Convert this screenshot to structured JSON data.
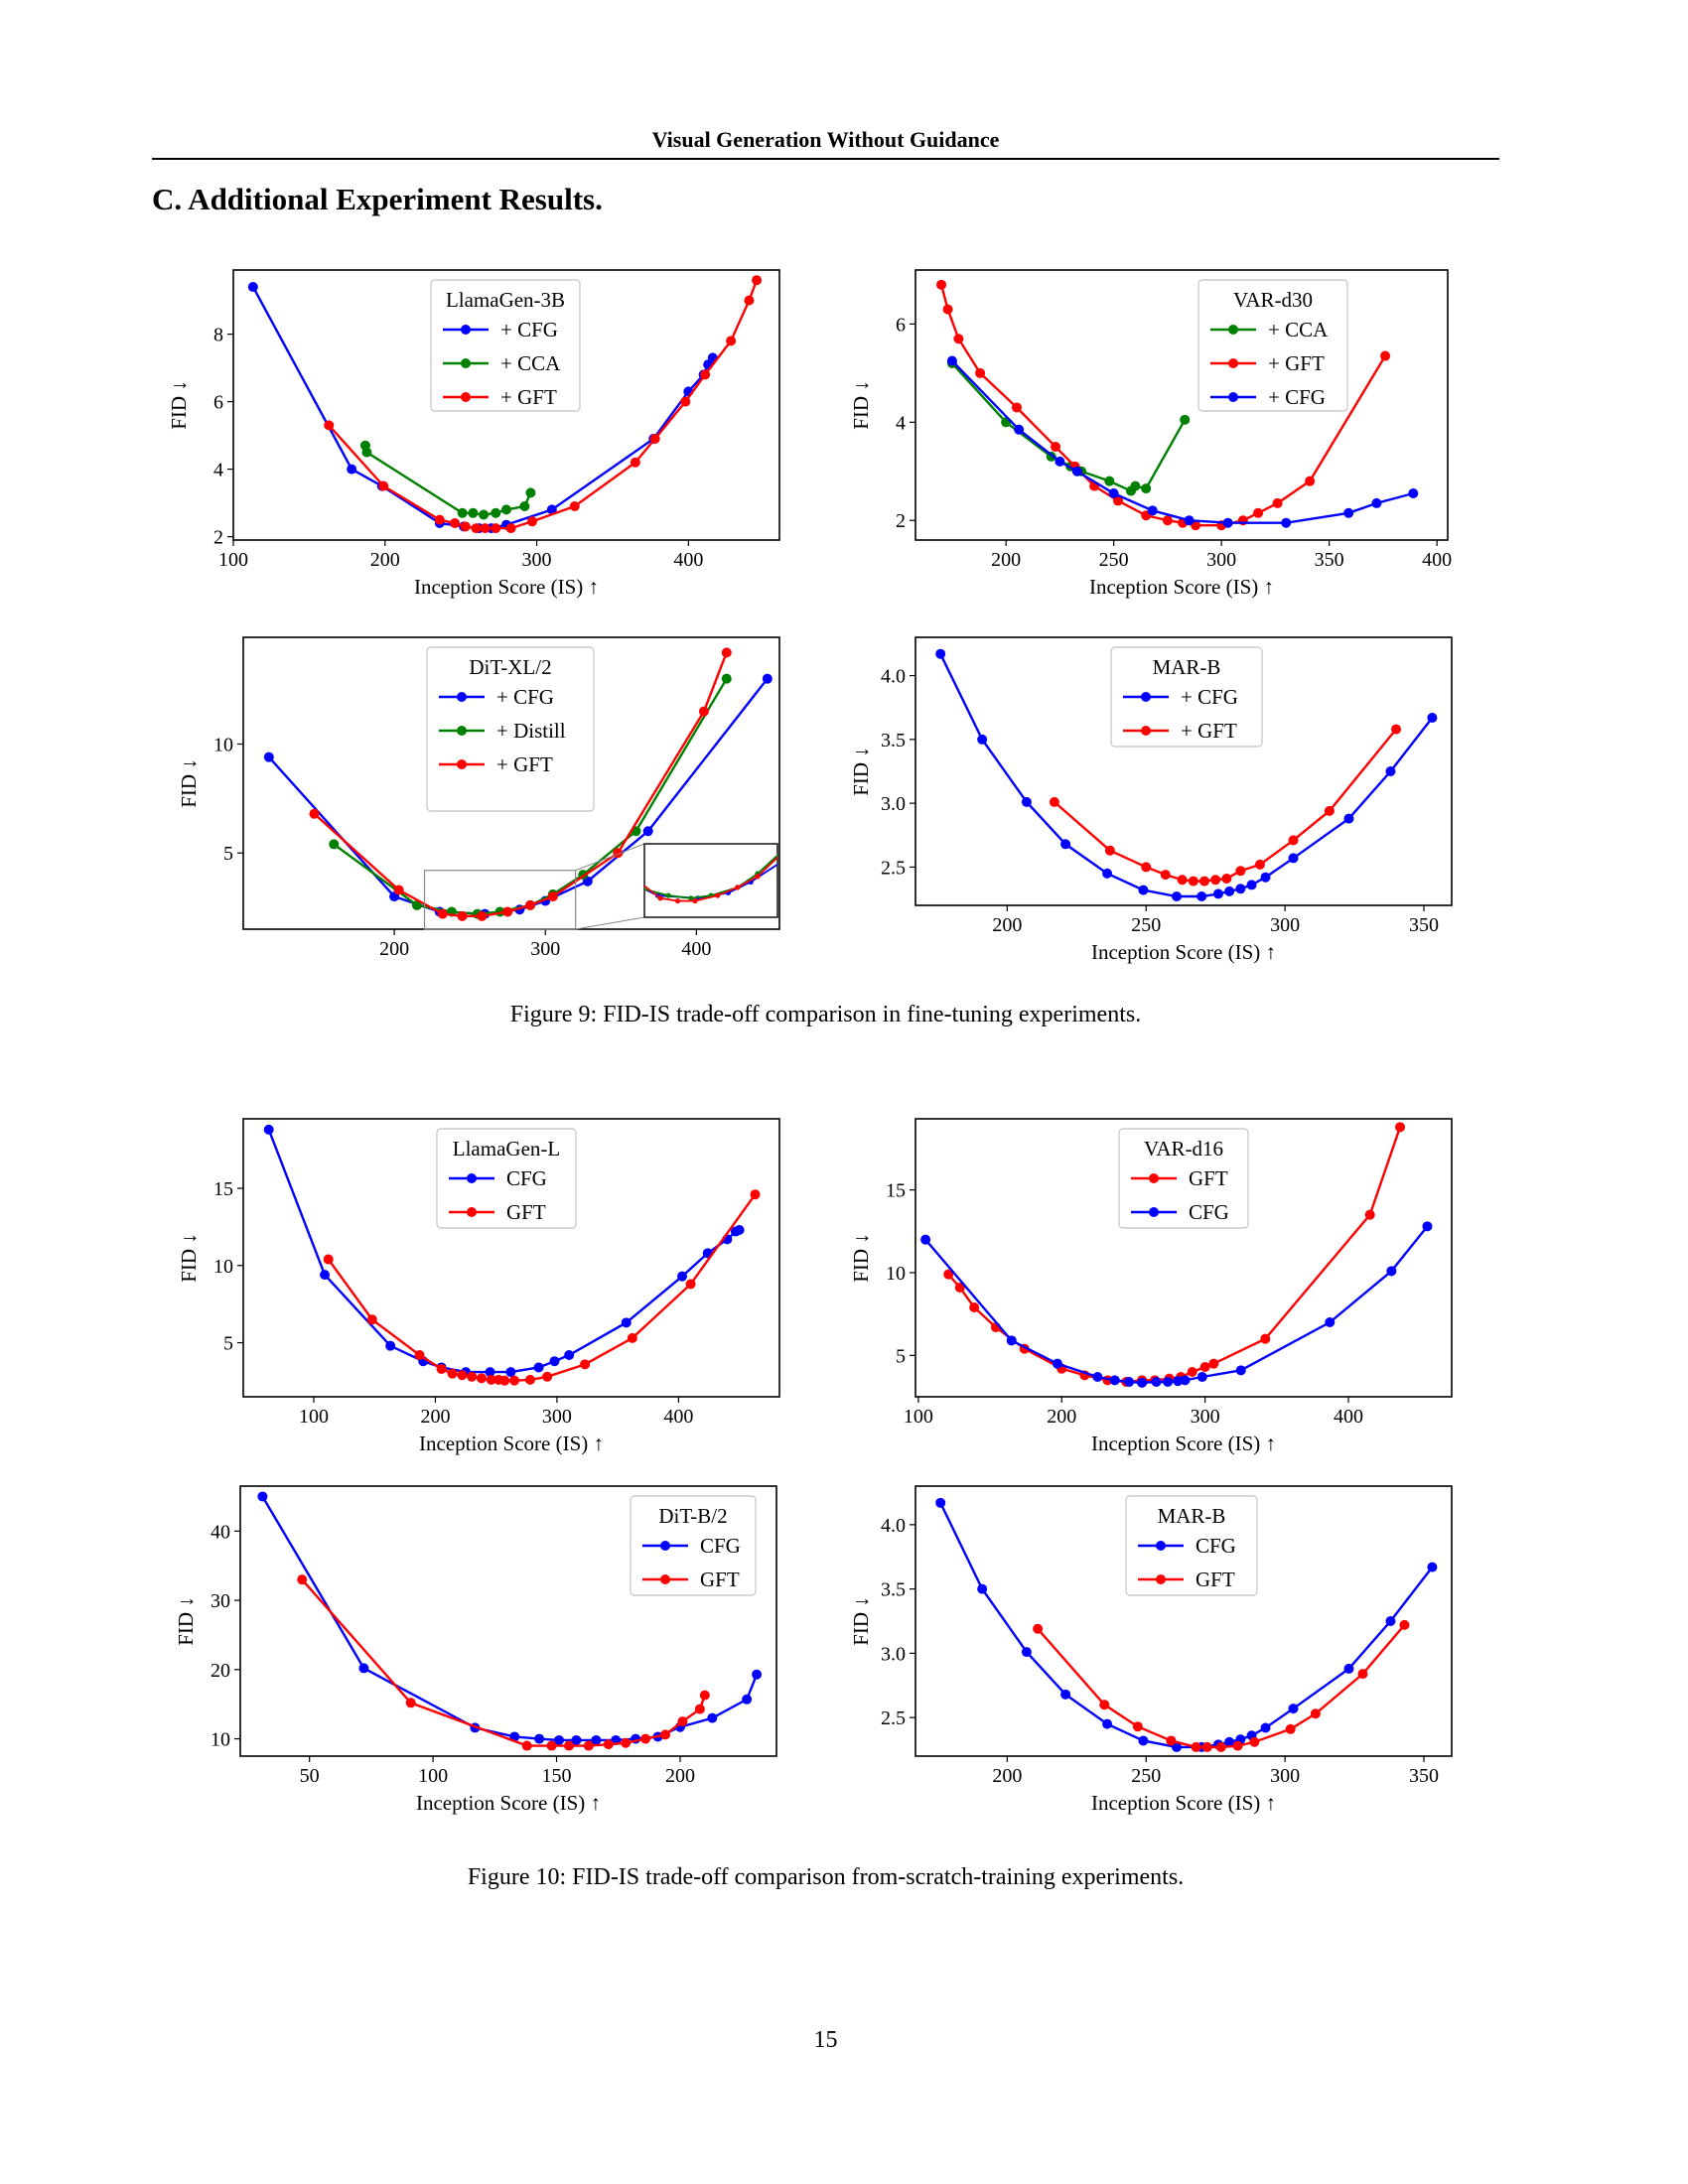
{
  "header": {
    "running_title": "Visual Generation Without Guidance"
  },
  "section": {
    "title": "C. Additional Experiment Results."
  },
  "figure9": {
    "caption": "Figure 9: FID-IS trade-off comparison in fine-tuning experiments."
  },
  "figure10": {
    "caption": "Figure 10: FID-IS trade-off comparison from-scratch-training experiments."
  },
  "page_number": "15",
  "colors": {
    "blue": "#0000ff",
    "green": "#008000",
    "red": "#ff0000"
  },
  "chart_data": [
    {
      "type": "line",
      "legend_title": "LlamaGen-3B",
      "xlabel": "Inception Score (IS) ↑",
      "ylabel": "FID ↓",
      "xlim": [
        100,
        460
      ],
      "ylim": [
        1.9,
        9.9
      ],
      "xticks": [
        100,
        200,
        300,
        400
      ],
      "yticks": [
        2,
        4,
        6,
        8
      ],
      "legend_position": "top-center",
      "series": [
        {
          "name": "+ CFG",
          "color": "#0000ff",
          "x": [
            113,
            178,
            198,
            236,
            252,
            262,
            270,
            280,
            310,
            377,
            400,
            410,
            413,
            416
          ],
          "y": [
            9.4,
            4.0,
            3.5,
            2.4,
            2.3,
            2.25,
            2.25,
            2.35,
            2.8,
            4.9,
            6.3,
            6.8,
            7.1,
            7.3
          ]
        },
        {
          "name": "+ CCA",
          "color": "#008000",
          "x": [
            187,
            188,
            251,
            258,
            265,
            273,
            280,
            292,
            296
          ],
          "y": [
            4.7,
            4.5,
            2.7,
            2.7,
            2.65,
            2.7,
            2.8,
            2.9,
            3.3
          ]
        },
        {
          "name": "+ GFT",
          "color": "#ff0000",
          "x": [
            163,
            199,
            236,
            246,
            253,
            260,
            266,
            273,
            283,
            297,
            325,
            365,
            378,
            398,
            411,
            428,
            440,
            445
          ],
          "y": [
            5.3,
            3.5,
            2.5,
            2.4,
            2.3,
            2.25,
            2.25,
            2.25,
            2.25,
            2.45,
            2.9,
            4.2,
            4.9,
            6.0,
            6.8,
            7.8,
            9.0,
            9.6
          ]
        }
      ]
    },
    {
      "type": "line",
      "legend_title": "VAR-d30",
      "xlabel": "Inception Score (IS) ↑",
      "ylabel": "FID ↓",
      "xlim": [
        158,
        405
      ],
      "ylim": [
        1.6,
        7.1
      ],
      "xticks": [
        200,
        250,
        300,
        350,
        400
      ],
      "yticks": [
        2,
        4,
        6
      ],
      "legend_position": "top-right",
      "series": [
        {
          "name": "+ CCA",
          "color": "#008000",
          "x": [
            175,
            200,
            221,
            230,
            235,
            248,
            258,
            260,
            265,
            283
          ],
          "y": [
            5.2,
            4.0,
            3.3,
            3.1,
            3.0,
            2.8,
            2.6,
            2.7,
            2.65,
            4.05
          ]
        },
        {
          "name": "+ GFT",
          "color": "#ff0000",
          "x": [
            170,
            173,
            178,
            188,
            205,
            223,
            232,
            241,
            252,
            265,
            275,
            282,
            288,
            300,
            310,
            317,
            326,
            341,
            376
          ],
          "y": [
            6.8,
            6.3,
            5.7,
            5.0,
            4.3,
            3.5,
            3.1,
            2.7,
            2.4,
            2.1,
            2.0,
            1.95,
            1.9,
            1.9,
            2.0,
            2.15,
            2.35,
            2.8,
            5.35
          ]
        },
        {
          "name": "+ CFG",
          "color": "#0000ff",
          "x": [
            175,
            206,
            225,
            233,
            250,
            268,
            285,
            303,
            330,
            359,
            372,
            389
          ],
          "y": [
            5.25,
            3.85,
            3.2,
            3.0,
            2.55,
            2.2,
            2.0,
            1.95,
            1.95,
            2.15,
            2.35,
            2.55
          ]
        }
      ]
    },
    {
      "type": "line",
      "legend_title": "DiT-XL/2",
      "xlabel": "",
      "ylabel": "FID ↓",
      "xlim": [
        100,
        455
      ],
      "ylim": [
        1.5,
        14.9
      ],
      "xticks": [
        200,
        300,
        400
      ],
      "yticks": [
        5,
        10
      ],
      "legend_position": "top-center",
      "inset": "zoomed view of minimum region",
      "series": [
        {
          "name": "+ CFG",
          "color": "#0000ff",
          "x": [
            117,
            200,
            230,
            260,
            283,
            300,
            328,
            368,
            447
          ],
          "y": [
            9.4,
            3.0,
            2.3,
            2.2,
            2.4,
            2.8,
            3.7,
            6.0,
            13.0
          ]
        },
        {
          "name": "+ Distill",
          "color": "#008000",
          "x": [
            160,
            215,
            238,
            255,
            270,
            290,
            305,
            325,
            360,
            420
          ],
          "y": [
            5.4,
            2.6,
            2.3,
            2.2,
            2.3,
            2.6,
            3.1,
            4.0,
            6.0,
            13.0
          ]
        },
        {
          "name": "+ GFT",
          "color": "#ff0000",
          "x": [
            147,
            203,
            232,
            245,
            258,
            275,
            290,
            305,
            348,
            405,
            420
          ],
          "y": [
            6.8,
            3.3,
            2.2,
            2.1,
            2.1,
            2.3,
            2.6,
            3.0,
            5.0,
            11.5,
            14.2
          ]
        }
      ]
    },
    {
      "type": "line",
      "legend_title": "MAR-B",
      "xlabel": "Inception Score (IS) ↑",
      "ylabel": "FID ↓",
      "xlim": [
        167,
        360
      ],
      "ylim": [
        2.2,
        4.3
      ],
      "xticks": [
        200,
        250,
        300,
        350
      ],
      "yticks": [
        2.5,
        3.0,
        3.5,
        4.0
      ],
      "legend_position": "top-center",
      "series": [
        {
          "name": "+ CFG",
          "color": "#0000ff",
          "x": [
            176,
            191,
            207,
            221,
            236,
            249,
            261,
            270,
            276,
            280,
            284,
            288,
            293,
            303,
            323,
            338,
            353
          ],
          "y": [
            4.17,
            3.5,
            3.01,
            2.68,
            2.45,
            2.32,
            2.27,
            2.27,
            2.29,
            2.31,
            2.33,
            2.36,
            2.42,
            2.57,
            2.88,
            3.25,
            3.67
          ]
        },
        {
          "name": "+ GFT",
          "color": "#ff0000",
          "x": [
            217,
            237,
            250,
            257,
            263,
            267,
            271,
            275,
            279,
            284,
            291,
            303,
            316,
            340
          ],
          "y": [
            3.01,
            2.63,
            2.5,
            2.44,
            2.4,
            2.39,
            2.39,
            2.4,
            2.41,
            2.47,
            2.52,
            2.71,
            2.94,
            3.58
          ]
        }
      ]
    },
    {
      "type": "line",
      "legend_title": "LlamaGen-L",
      "xlabel": "Inception Score (IS) ↑",
      "ylabel": "FID ↓",
      "xlim": [
        42,
        483
      ],
      "ylim": [
        1.5,
        19.5
      ],
      "xticks": [
        100,
        200,
        300,
        400
      ],
      "yticks": [
        5,
        10,
        15
      ],
      "legend_position": "top-center",
      "series": [
        {
          "name": "CFG",
          "color": "#0000ff",
          "x": [
            63,
            109,
            163,
            190,
            205,
            225,
            245,
            262,
            285,
            298,
            310,
            357,
            403,
            424,
            440,
            447,
            450
          ],
          "y": [
            18.8,
            9.4,
            4.8,
            3.8,
            3.4,
            3.1,
            3.1,
            3.1,
            3.4,
            3.8,
            4.2,
            6.3,
            9.3,
            10.8,
            11.7,
            12.2,
            12.3
          ]
        },
        {
          "name": "GFT",
          "color": "#ff0000",
          "x": [
            112,
            148,
            187,
            205,
            214,
            222,
            230,
            238,
            246,
            252,
            257,
            265,
            278,
            292,
            323,
            362,
            410,
            463
          ],
          "y": [
            10.4,
            6.5,
            4.2,
            3.3,
            3.0,
            2.9,
            2.8,
            2.7,
            2.6,
            2.6,
            2.55,
            2.55,
            2.6,
            2.8,
            3.6,
            5.3,
            8.8,
            14.6
          ]
        }
      ]
    },
    {
      "type": "line",
      "legend_title": "VAR-d16",
      "xlabel": "Inception Score (IS) ↑",
      "ylabel": "FID ↓",
      "xlim": [
        98,
        472
      ],
      "ylim": [
        2.5,
        19.3
      ],
      "xticks": [
        100,
        200,
        300,
        400
      ],
      "yticks": [
        5,
        10,
        15
      ],
      "legend_position": "top-center",
      "series": [
        {
          "name": "GFT",
          "color": "#ff0000",
          "x": [
            121,
            129,
            139,
            154,
            174,
            200,
            216,
            232,
            245,
            256,
            265,
            275,
            283,
            291,
            300,
            306,
            342,
            415,
            436
          ],
          "y": [
            9.9,
            9.1,
            7.9,
            6.7,
            5.4,
            4.2,
            3.8,
            3.5,
            3.4,
            3.5,
            3.5,
            3.6,
            3.7,
            4.0,
            4.3,
            4.5,
            6.0,
            13.5,
            18.8
          ]
        },
        {
          "name": "CFG",
          "color": "#0000ff",
          "x": [
            105,
            165,
            197,
            225,
            237,
            247,
            256,
            266,
            274,
            281,
            286,
            298,
            325,
            387,
            430,
            455
          ],
          "y": [
            12.0,
            5.9,
            4.5,
            3.7,
            3.5,
            3.4,
            3.35,
            3.4,
            3.4,
            3.45,
            3.5,
            3.7,
            4.1,
            7.0,
            10.1,
            12.8
          ]
        }
      ]
    },
    {
      "type": "line",
      "legend_title": "DiT-B/2",
      "xlabel": "Inception Score (IS) ↑",
      "ylabel": "FID ↓",
      "xlim": [
        22,
        239
      ],
      "ylim": [
        7.5,
        46.5
      ],
      "xticks": [
        50,
        100,
        150,
        200
      ],
      "yticks": [
        10,
        20,
        30,
        40
      ],
      "legend_position": "top-right",
      "series": [
        {
          "name": "CFG",
          "color": "#0000ff",
          "x": [
            31,
            72,
            117,
            133,
            143,
            151,
            158,
            166,
            174,
            182,
            191,
            200,
            213,
            227,
            231
          ],
          "y": [
            45.0,
            20.2,
            11.6,
            10.3,
            10.0,
            9.8,
            9.8,
            9.8,
            9.8,
            10.0,
            10.3,
            11.7,
            13.0,
            15.7,
            19.3
          ]
        },
        {
          "name": "GFT",
          "color": "#ff0000",
          "x": [
            47,
            91,
            138,
            148,
            155,
            163,
            171,
            178,
            186,
            194,
            201,
            208,
            210
          ],
          "y": [
            33.0,
            15.2,
            9.0,
            9.0,
            9.0,
            9.0,
            9.2,
            9.4,
            10.0,
            10.6,
            12.5,
            14.3,
            16.3
          ]
        }
      ]
    },
    {
      "type": "line",
      "legend_title": "MAR-B",
      "xlabel": "Inception Score (IS) ↑",
      "ylabel": "FID ↓",
      "xlim": [
        167,
        360
      ],
      "ylim": [
        2.2,
        4.3
      ],
      "xticks": [
        200,
        250,
        300,
        350
      ],
      "yticks": [
        2.5,
        3.0,
        3.5,
        4.0
      ],
      "legend_position": "top-center",
      "series": [
        {
          "name": "CFG",
          "color": "#0000ff",
          "x": [
            176,
            191,
            207,
            221,
            236,
            249,
            261,
            270,
            276,
            280,
            284,
            288,
            293,
            303,
            323,
            338,
            353
          ],
          "y": [
            4.17,
            3.5,
            3.01,
            2.68,
            2.45,
            2.32,
            2.27,
            2.27,
            2.29,
            2.31,
            2.33,
            2.36,
            2.42,
            2.57,
            2.88,
            3.25,
            3.67
          ]
        },
        {
          "name": "GFT",
          "color": "#ff0000",
          "x": [
            211,
            235,
            247,
            259,
            268,
            272,
            277,
            283,
            289,
            302,
            311,
            328,
            343
          ],
          "y": [
            3.19,
            2.6,
            2.43,
            2.32,
            2.27,
            2.27,
            2.27,
            2.28,
            2.31,
            2.41,
            2.53,
            2.84,
            3.22
          ]
        }
      ]
    }
  ]
}
